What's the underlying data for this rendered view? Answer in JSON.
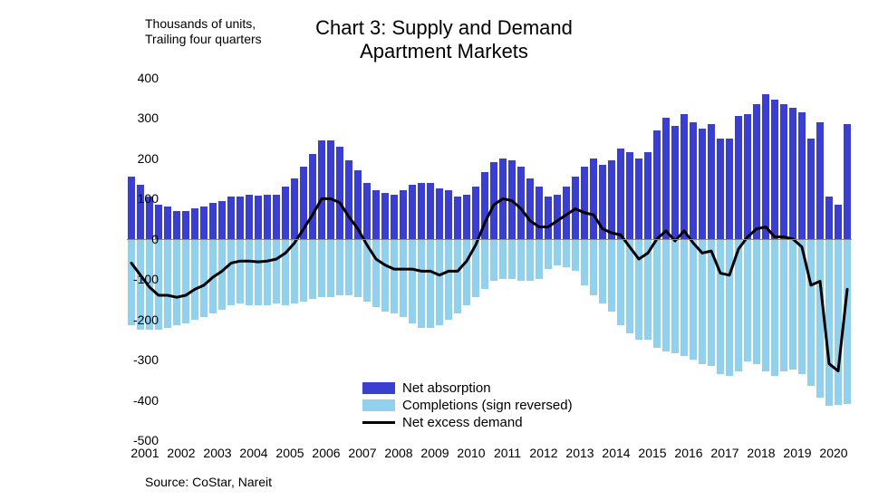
{
  "title_line1": "Chart 3: Supply and Demand",
  "title_line2": "Apartment Markets",
  "subtitle_line1": "Thousands of units,",
  "subtitle_line2": "Trailing four quarters",
  "source": "Source: CoStar, Nareit",
  "legend": {
    "net_absorption": "Net absorption",
    "completions": "Completions (sign reversed)",
    "net_excess": "Net excess demand"
  },
  "chart": {
    "type": "bar+line",
    "ylim": [
      -500,
      400
    ],
    "ytick_step": 100,
    "y_ticks": [
      -500,
      -400,
      -300,
      -200,
      -100,
      0,
      100,
      200,
      300,
      400
    ],
    "x_labels": [
      "2001",
      "2002",
      "2003",
      "2004",
      "2005",
      "2006",
      "2007",
      "2008",
      "2009",
      "2010",
      "2011",
      "2012",
      "2013",
      "2014",
      "2015",
      "2016",
      "2017",
      "2018",
      "2019",
      "2020"
    ],
    "quarters_per_year": 4,
    "colors": {
      "net_absorption": "#3a3fd1",
      "completions": "#91d1ee",
      "net_excess_line": "#000000",
      "background": "#ffffff",
      "axis": "#888888",
      "text": "#000000"
    },
    "line_width": 3,
    "bar_gap_ratio": 0.25,
    "title_fontsize": 22,
    "label_fontsize": 14,
    "legend_fontsize": 15,
    "net_absorption": [
      155,
      135,
      105,
      85,
      80,
      70,
      70,
      75,
      80,
      90,
      95,
      105,
      105,
      110,
      108,
      110,
      110,
      130,
      150,
      180,
      210,
      245,
      245,
      230,
      195,
      170,
      140,
      120,
      115,
      110,
      120,
      135,
      140,
      140,
      125,
      120,
      105,
      110,
      130,
      165,
      190,
      200,
      195,
      180,
      150,
      130,
      105,
      110,
      130,
      155,
      180,
      200,
      185,
      195,
      225,
      215,
      200,
      215,
      270,
      300,
      280,
      310,
      290,
      275,
      285,
      250,
      250,
      305,
      310,
      335,
      360,
      345,
      335,
      325,
      315,
      250,
      290,
      105,
      85,
      285
    ],
    "completions": [
      -215,
      -225,
      -225,
      -225,
      -220,
      -215,
      -210,
      -200,
      -195,
      -185,
      -175,
      -165,
      -160,
      -165,
      -165,
      -165,
      -160,
      -165,
      -160,
      -155,
      -150,
      -145,
      -145,
      -140,
      -140,
      -145,
      -155,
      -170,
      -180,
      -185,
      -195,
      -210,
      -220,
      -220,
      -215,
      -200,
      -185,
      -165,
      -145,
      -125,
      -105,
      -100,
      -100,
      -105,
      -105,
      -100,
      -75,
      -65,
      -70,
      -80,
      -115,
      -140,
      -160,
      -180,
      -215,
      -235,
      -250,
      -250,
      -270,
      -280,
      -285,
      -290,
      -300,
      -310,
      -315,
      -335,
      -340,
      -330,
      -305,
      -310,
      -330,
      -340,
      -330,
      -325,
      -335,
      -365,
      -395,
      -415,
      -413,
      -410
    ],
    "net_excess": [
      -60,
      -90,
      -120,
      -140,
      -140,
      -145,
      -140,
      -125,
      -115,
      -95,
      -80,
      -60,
      -55,
      -55,
      -57,
      -55,
      -50,
      -35,
      -10,
      25,
      60,
      100,
      100,
      90,
      55,
      25,
      -15,
      -50,
      -65,
      -75,
      -75,
      -75,
      -80,
      -80,
      -90,
      -80,
      -80,
      -55,
      -15,
      40,
      85,
      100,
      95,
      75,
      45,
      30,
      30,
      45,
      60,
      75,
      65,
      60,
      25,
      15,
      10,
      -20,
      -50,
      -35,
      0,
      20,
      -5,
      20,
      -10,
      -35,
      -30,
      -85,
      -90,
      -25,
      5,
      25,
      30,
      5,
      5,
      0,
      -20,
      -115,
      -105,
      -310,
      -328,
      -125
    ]
  }
}
